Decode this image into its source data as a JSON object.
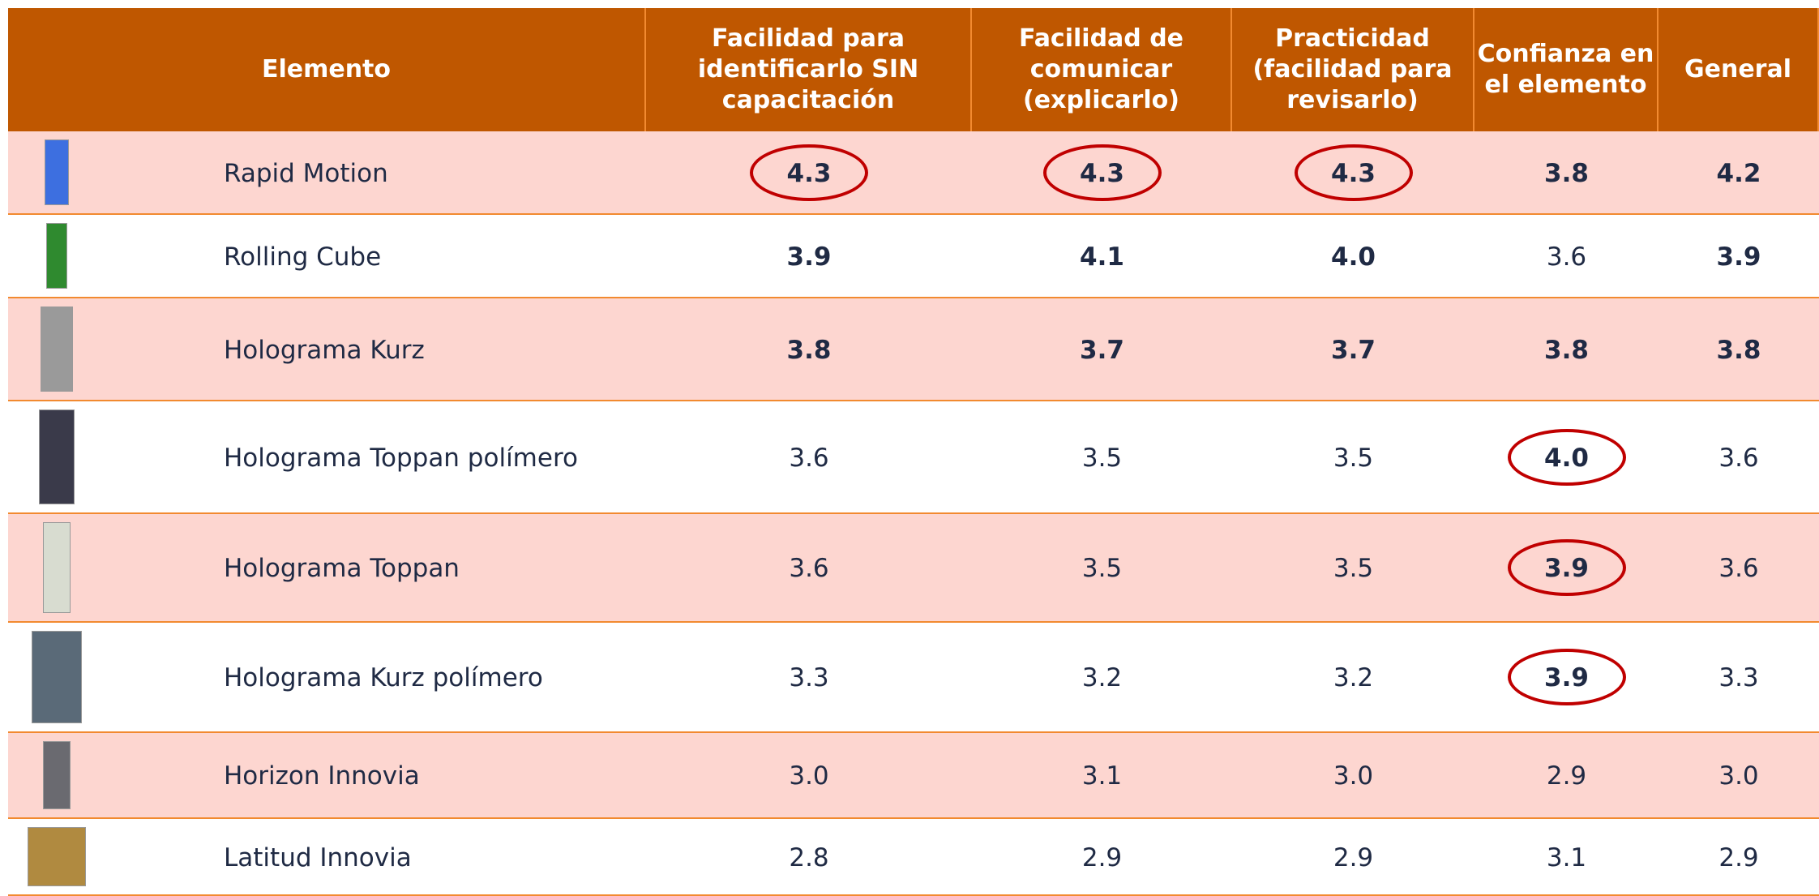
{
  "table": {
    "header": [
      [
        "Elemento"
      ],
      [
        "Facilidad para",
        "identificarlo SIN",
        "capacitación"
      ],
      [
        "Facilidad de",
        "comunicar",
        "(explicarlo)"
      ],
      [
        "Practicidad",
        "(facilidad para",
        "revisarlo)"
      ],
      [
        "Confianza en",
        "el elemento"
      ],
      [
        "General"
      ]
    ],
    "rows": [
      {
        "name": "Rapid Motion",
        "values": [
          "4.3",
          "4.3",
          "4.3",
          "3.8",
          "4.2"
        ],
        "bold": [
          true,
          true,
          true,
          true,
          true
        ],
        "circled": [
          true,
          true,
          true,
          false,
          false
        ]
      },
      {
        "name": "Rolling Cube",
        "values": [
          "3.9",
          "4.1",
          "4.0",
          "3.6",
          "3.9"
        ],
        "bold": [
          true,
          true,
          true,
          false,
          true
        ],
        "circled": [
          false,
          false,
          false,
          false,
          false
        ]
      },
      {
        "name": "Holograma Kurz",
        "values": [
          "3.8",
          "3.7",
          "3.7",
          "3.8",
          "3.8"
        ],
        "bold": [
          true,
          true,
          true,
          true,
          true
        ],
        "circled": [
          false,
          false,
          false,
          false,
          false
        ]
      },
      {
        "name": "Holograma Toppan polímero",
        "values": [
          "3.6",
          "3.5",
          "3.5",
          "4.0",
          "3.6"
        ],
        "bold": [
          false,
          false,
          false,
          true,
          false
        ],
        "circled": [
          false,
          false,
          false,
          true,
          false
        ]
      },
      {
        "name": "Holograma Toppan",
        "values": [
          "3.6",
          "3.5",
          "3.5",
          "3.9",
          "3.6"
        ],
        "bold": [
          false,
          false,
          false,
          true,
          false
        ],
        "circled": [
          false,
          false,
          false,
          true,
          false
        ]
      },
      {
        "name": "Holograma Kurz polímero",
        "values": [
          "3.3",
          "3.2",
          "3.2",
          "3.9",
          "3.3"
        ],
        "bold": [
          false,
          false,
          false,
          true,
          false
        ],
        "circled": [
          false,
          false,
          false,
          true,
          false
        ]
      },
      {
        "name": "Horizon Innovia",
        "values": [
          "3.0",
          "3.1",
          "3.0",
          "2.9",
          "3.0"
        ],
        "bold": [
          false,
          false,
          false,
          false,
          false
        ],
        "circled": [
          false,
          false,
          false,
          false,
          false
        ]
      },
      {
        "name": "Latitud Innovia",
        "values": [
          "2.8",
          "2.9",
          "2.9",
          "3.1",
          "2.9"
        ],
        "bold": [
          false,
          false,
          false,
          false,
          false
        ],
        "circled": [
          false,
          false,
          false,
          false,
          false
        ]
      }
    ]
  }
}
